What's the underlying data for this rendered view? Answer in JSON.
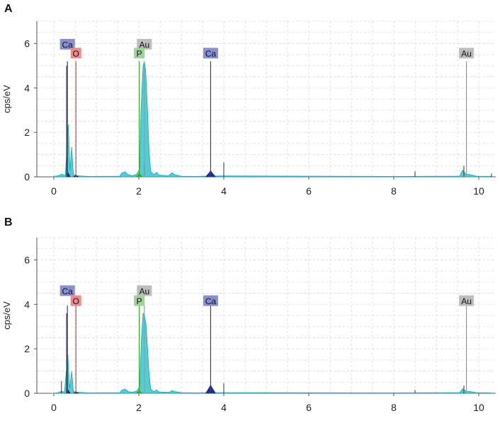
{
  "colors": {
    "grid": "#d8d8d8",
    "axis": "#555555",
    "spectrum_fill": "#38c2cc",
    "spectrum_stroke": "#1aa8b4",
    "ca_peak": "#1d2f8a",
    "o_peak": "#1a1a1a",
    "p_peak": "#3aa62a",
    "ca_label_bg": "#8a8fd0",
    "o_label_bg": "#ef8a8a",
    "p_label_bg": "#9ed39a",
    "au_label_bg": "#bdbdbd",
    "ca_line": "#3a3f7a",
    "o_line": "#c0504d",
    "p_line": "#3aa62a",
    "au_line": "#999999"
  },
  "chart_data": [
    {
      "panel": "A",
      "type": "area",
      "xlabel": "",
      "ylabel": "cps/eV",
      "xlim": [
        -0.4,
        10.4
      ],
      "ylim": [
        0,
        7
      ],
      "x_ticks": [
        "0",
        "2",
        "4",
        "6",
        "8",
        "10"
      ],
      "y_ticks": [
        "0",
        "2",
        "4",
        "6"
      ],
      "grid": true,
      "spectrum": [
        [
          -0.05,
          0
        ],
        [
          0.1,
          0.05
        ],
        [
          0.2,
          0.12
        ],
        [
          0.27,
          0.05
        ],
        [
          0.34,
          2.35
        ],
        [
          0.38,
          0.3
        ],
        [
          0.42,
          1.35
        ],
        [
          0.46,
          0.1
        ],
        [
          0.55,
          0.05
        ],
        [
          0.8,
          0.02
        ],
        [
          1.55,
          0.03
        ],
        [
          1.6,
          0.18
        ],
        [
          1.68,
          0.22
        ],
        [
          1.75,
          0.1
        ],
        [
          1.85,
          0.05
        ],
        [
          1.95,
          0.12
        ],
        [
          2.02,
          0.35
        ],
        [
          2.05,
          2.9
        ],
        [
          2.1,
          5.0
        ],
        [
          2.13,
          5.2
        ],
        [
          2.16,
          4.8
        ],
        [
          2.2,
          3.2
        ],
        [
          2.24,
          1.2
        ],
        [
          2.28,
          0.25
        ],
        [
          2.35,
          0.1
        ],
        [
          2.42,
          0.2
        ],
        [
          2.48,
          0.08
        ],
        [
          2.7,
          0.05
        ],
        [
          2.78,
          0.18
        ],
        [
          2.85,
          0.1
        ],
        [
          3.0,
          0.03
        ],
        [
          3.3,
          0.02
        ],
        [
          4.0,
          0.04
        ],
        [
          8.0,
          0.02
        ],
        [
          9.55,
          0.03
        ],
        [
          9.62,
          0.3
        ],
        [
          9.7,
          0.12
        ],
        [
          9.8,
          0.1
        ],
        [
          9.95,
          0.03
        ],
        [
          10.3,
          0.02
        ]
      ],
      "peaks": [
        {
          "element": "Ca",
          "x": 3.69,
          "height": 0.28,
          "width": 0.12,
          "color_key": "ca_peak"
        },
        {
          "element": "Ca",
          "x": 0.34,
          "height": 0.18,
          "width": 0.05,
          "color_key": "ca_peak"
        },
        {
          "element": "P",
          "x": 2.01,
          "height": 0.15,
          "width": 0.08,
          "color_key": "p_peak"
        },
        {
          "element": "O",
          "x": 0.52,
          "height": 0.08,
          "width": 0.06,
          "color_key": "o_peak"
        }
      ],
      "spikes": [
        {
          "x": 0.3,
          "h": 5.0
        },
        {
          "x": 4.0,
          "h": 0.65
        },
        {
          "x": 2.13,
          "h": 0.6
        },
        {
          "x": 9.65,
          "h": 0.5
        },
        {
          "x": 8.5,
          "h": 0.25
        },
        {
          "x": 10.3,
          "h": 0.15
        }
      ],
      "labels": [
        {
          "text": "Ca",
          "x": 0.32,
          "y": 5.95,
          "line_to": 5.2,
          "bg_key": "ca_label_bg",
          "line_key": "ca_line"
        },
        {
          "text": "O",
          "x": 0.52,
          "y": 5.55,
          "line_to": 5.2,
          "bg_key": "o_label_bg",
          "line_key": "o_line"
        },
        {
          "text": "Au",
          "x": 2.13,
          "y": 5.95,
          "line_to": 5.2,
          "bg_key": "au_label_bg",
          "line_key": "au_line"
        },
        {
          "text": "P",
          "x": 2.01,
          "y": 5.55,
          "line_to": 5.2,
          "bg_key": "p_label_bg",
          "line_key": "p_line"
        },
        {
          "text": "Ca",
          "x": 3.69,
          "y": 5.55,
          "line_to": 5.2,
          "bg_key": "ca_label_bg",
          "line_key": "ca_line"
        },
        {
          "text": "Au",
          "x": 9.71,
          "y": 5.55,
          "line_to": 5.2,
          "bg_key": "au_label_bg",
          "line_key": "au_line"
        }
      ]
    },
    {
      "panel": "B",
      "type": "area",
      "xlabel": "",
      "ylabel": "cps/eV",
      "xlim": [
        -0.4,
        10.4
      ],
      "ylim": [
        0,
        7
      ],
      "x_ticks": [
        "0",
        "2",
        "4",
        "6",
        "8",
        "10"
      ],
      "y_ticks": [
        "0",
        "2",
        "4",
        "6"
      ],
      "grid": true,
      "spectrum": [
        [
          -0.05,
          0
        ],
        [
          0.1,
          0.03
        ],
        [
          0.18,
          0.1
        ],
        [
          0.25,
          0.05
        ],
        [
          0.33,
          1.75
        ],
        [
          0.37,
          0.2
        ],
        [
          0.42,
          1.0
        ],
        [
          0.46,
          0.08
        ],
        [
          0.55,
          0.05
        ],
        [
          0.8,
          0.02
        ],
        [
          1.55,
          0.03
        ],
        [
          1.6,
          0.15
        ],
        [
          1.68,
          0.18
        ],
        [
          1.75,
          0.08
        ],
        [
          1.85,
          0.05
        ],
        [
          1.95,
          0.1
        ],
        [
          2.02,
          0.3
        ],
        [
          2.06,
          2.4
        ],
        [
          2.1,
          3.6
        ],
        [
          2.13,
          3.55
        ],
        [
          2.17,
          3.1
        ],
        [
          2.2,
          2.2
        ],
        [
          2.24,
          0.9
        ],
        [
          2.28,
          0.2
        ],
        [
          2.35,
          0.08
        ],
        [
          2.42,
          0.15
        ],
        [
          2.48,
          0.06
        ],
        [
          2.7,
          0.04
        ],
        [
          2.78,
          0.12
        ],
        [
          2.85,
          0.08
        ],
        [
          3.0,
          0.03
        ],
        [
          3.3,
          0.02
        ],
        [
          4.0,
          0.03
        ],
        [
          8.0,
          0.02
        ],
        [
          9.55,
          0.03
        ],
        [
          9.62,
          0.2
        ],
        [
          9.7,
          0.1
        ],
        [
          9.8,
          0.08
        ],
        [
          9.95,
          0.03
        ],
        [
          10.3,
          0.02
        ]
      ],
      "peaks": [
        {
          "element": "Ca",
          "x": 3.69,
          "height": 0.38,
          "width": 0.12,
          "color_key": "ca_peak"
        },
        {
          "element": "Ca",
          "x": 0.34,
          "height": 0.15,
          "width": 0.05,
          "color_key": "ca_peak"
        },
        {
          "element": "P",
          "x": 2.01,
          "height": 0.12,
          "width": 0.08,
          "color_key": "p_peak"
        },
        {
          "element": "O",
          "x": 0.52,
          "height": 0.07,
          "width": 0.06,
          "color_key": "o_peak"
        }
      ],
      "spikes": [
        {
          "x": 0.3,
          "h": 3.6
        },
        {
          "x": 0.18,
          "h": 0.55
        },
        {
          "x": 4.0,
          "h": 0.45
        },
        {
          "x": 9.65,
          "h": 0.35
        },
        {
          "x": 8.5,
          "h": 0.15
        }
      ],
      "labels": [
        {
          "text": "Ca",
          "x": 0.32,
          "y": 4.6,
          "line_to": 3.95,
          "bg_key": "ca_label_bg",
          "line_key": "ca_line"
        },
        {
          "text": "O",
          "x": 0.52,
          "y": 4.15,
          "line_to": 3.95,
          "bg_key": "o_label_bg",
          "line_key": "o_line"
        },
        {
          "text": "Au",
          "x": 2.13,
          "y": 4.6,
          "line_to": 3.95,
          "bg_key": "au_label_bg",
          "line_key": "au_line"
        },
        {
          "text": "P",
          "x": 2.01,
          "y": 4.15,
          "line_to": 3.95,
          "bg_key": "p_label_bg",
          "line_key": "p_line"
        },
        {
          "text": "Ca",
          "x": 3.69,
          "y": 4.15,
          "line_to": 3.95,
          "bg_key": "ca_label_bg",
          "line_key": "ca_line"
        },
        {
          "text": "Au",
          "x": 9.71,
          "y": 4.15,
          "line_to": 3.95,
          "bg_key": "au_label_bg",
          "line_key": "au_line"
        }
      ]
    }
  ]
}
